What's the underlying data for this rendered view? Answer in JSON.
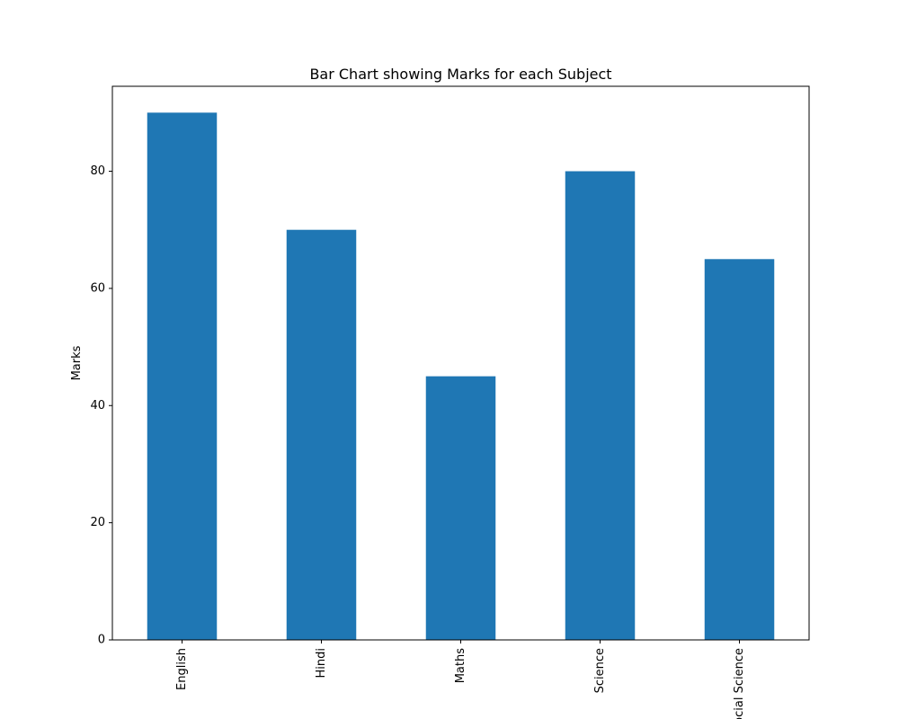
{
  "chart_data": {
    "type": "bar",
    "title": "Bar Chart showing Marks for each Subject",
    "xlabel": "",
    "ylabel": "Marks",
    "categories": [
      "English",
      "Hindi",
      "Maths",
      "Science",
      "Social Science"
    ],
    "values": [
      90,
      70,
      45,
      80,
      65
    ],
    "ylim": [
      0,
      94.5
    ],
    "yticks": [
      0,
      20,
      40,
      60,
      80
    ],
    "bar_color": "#1f77b4",
    "grid": false,
    "legend": "none"
  }
}
